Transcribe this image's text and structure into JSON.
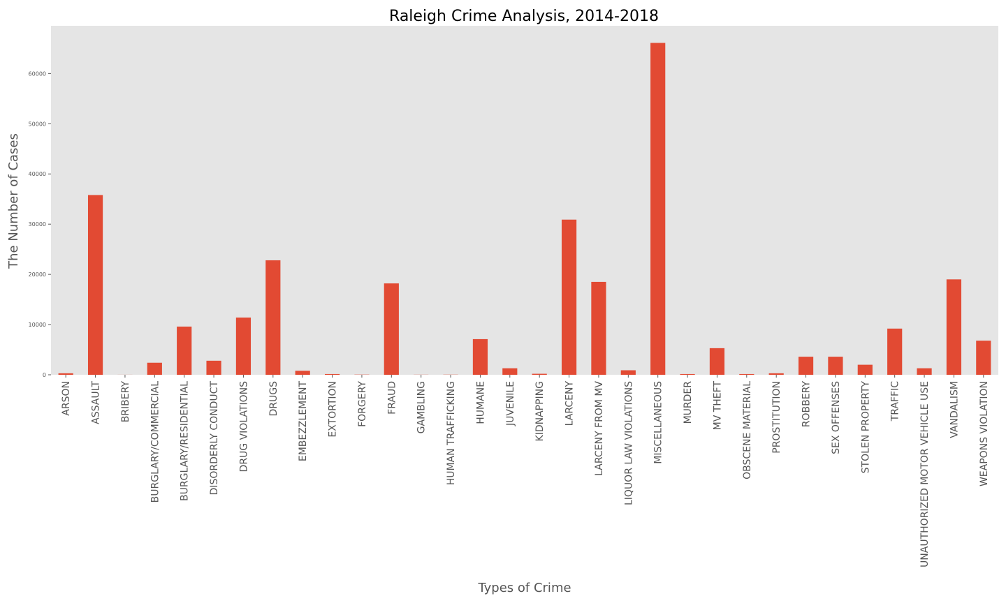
{
  "chart_data": {
    "type": "bar",
    "title": "Raleigh Crime Analysis, 2014-2018",
    "xlabel": "Types of Crime",
    "ylabel": "The Number of Cases",
    "ylim": [
      0,
      69500
    ],
    "yticks": [
      0,
      10000,
      20000,
      30000,
      40000,
      50000,
      60000
    ],
    "grid": false,
    "bar_color": "#E24A33",
    "plot_background": "#E5E5E5",
    "categories": [
      "ARSON",
      "ASSAULT",
      "BRIBERY",
      "BURGLARY/COMMERCIAL",
      "BURGLARY/RESIDENTIAL",
      "DISORDERLY CONDUCT",
      "DRUG VIOLATIONS",
      "DRUGS",
      "EMBEZZLEMENT",
      "EXTORTION",
      "FORGERY",
      "FRAUD",
      "GAMBLING",
      "HUMAN TRAFFICKING",
      "HUMANE",
      "JUVENILE",
      "KIDNAPPING",
      "LARCENY",
      "LARCENY FROM MV",
      "LIQUOR LAW VIOLATIONS",
      "MISCELLANEOUS",
      "MURDER",
      "MV THEFT",
      "OBSCENE MATERIAL",
      "PROSTITUTION",
      "ROBBERY",
      "SEX OFFENSES",
      "STOLEN PROPERTY",
      "TRAFFIC",
      "UNAUTHORIZED MOTOR VEHICLE USE",
      "VANDALISM",
      "WEAPONS VIOLATION"
    ],
    "values": [
      300,
      35800,
      10,
      2400,
      9600,
      2800,
      11400,
      22800,
      800,
      150,
      40,
      18200,
      20,
      30,
      7100,
      1300,
      200,
      30900,
      18500,
      900,
      66100,
      150,
      5300,
      150,
      300,
      3600,
      3600,
      2000,
      9200,
      1300,
      19000,
      6800
    ]
  }
}
